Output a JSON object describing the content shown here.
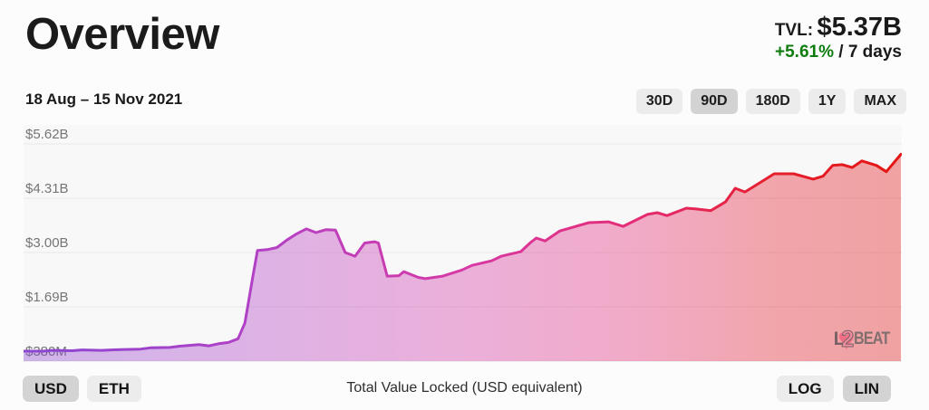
{
  "header": {
    "title": "Overview",
    "tvl_label": "TVL:",
    "tvl_value": "$5.37B",
    "change": "+5.61%",
    "change_suffix": " / 7 days",
    "date_range": "18 Aug – 15 Nov 2021"
  },
  "range_selector": {
    "buttons": [
      {
        "label": "30D",
        "selected": false
      },
      {
        "label": "90D",
        "selected": true
      },
      {
        "label": "180D",
        "selected": false
      },
      {
        "label": "1Y",
        "selected": false
      },
      {
        "label": "MAX",
        "selected": false
      }
    ]
  },
  "chart_data": {
    "type": "area",
    "title": "Total Value Locked (USD equivalent)",
    "x_range": [
      "18 Aug 2021",
      "15 Nov 2021"
    ],
    "x_unit": "days_from_start",
    "x_max_days": 90,
    "y_unit": "USD billions",
    "ylim": [
      0.38,
      5.62
    ],
    "grid": "horizontal",
    "legend": "none",
    "y_ticks": [
      {
        "label": "$5.62B",
        "value": 5.62
      },
      {
        "label": "$4.31B",
        "value": 4.31
      },
      {
        "label": "$3.00B",
        "value": 3.0
      },
      {
        "label": "$1.69B",
        "value": 1.69
      },
      {
        "label": "$380M",
        "value": 0.38
      }
    ],
    "points": [
      [
        0,
        0.62
      ],
      [
        2,
        0.62
      ],
      [
        3,
        0.64
      ],
      [
        5,
        0.63
      ],
      [
        6,
        0.65
      ],
      [
        8,
        0.64
      ],
      [
        10,
        0.66
      ],
      [
        12,
        0.67
      ],
      [
        13,
        0.7
      ],
      [
        15,
        0.71
      ],
      [
        16,
        0.74
      ],
      [
        17,
        0.76
      ],
      [
        18,
        0.78
      ],
      [
        19,
        0.75
      ],
      [
        20,
        0.8
      ],
      [
        21,
        0.83
      ],
      [
        22,
        0.92
      ],
      [
        22.7,
        1.3
      ],
      [
        23.5,
        2.4
      ],
      [
        24,
        3.05
      ],
      [
        25,
        3.07
      ],
      [
        26,
        3.12
      ],
      [
        27,
        3.3
      ],
      [
        28,
        3.45
      ],
      [
        29,
        3.57
      ],
      [
        30,
        3.48
      ],
      [
        31,
        3.55
      ],
      [
        32,
        3.54
      ],
      [
        33,
        3.0
      ],
      [
        34,
        2.91
      ],
      [
        35,
        3.23
      ],
      [
        36,
        3.26
      ],
      [
        36.4,
        3.23
      ],
      [
        37.3,
        2.43
      ],
      [
        38.5,
        2.44
      ],
      [
        39,
        2.54
      ],
      [
        40.5,
        2.4
      ],
      [
        41.2,
        2.37
      ],
      [
        43,
        2.43
      ],
      [
        45,
        2.58
      ],
      [
        46,
        2.69
      ],
      [
        48,
        2.8
      ],
      [
        49,
        2.91
      ],
      [
        51,
        3.02
      ],
      [
        52,
        3.24
      ],
      [
        52.6,
        3.35
      ],
      [
        53.5,
        3.28
      ],
      [
        55,
        3.52
      ],
      [
        58,
        3.72
      ],
      [
        60,
        3.74
      ],
      [
        61.5,
        3.63
      ],
      [
        64,
        3.92
      ],
      [
        65,
        3.96
      ],
      [
        66,
        3.89
      ],
      [
        68,
        4.07
      ],
      [
        69,
        4.05
      ],
      [
        70.5,
        4.01
      ],
      [
        72,
        4.22
      ],
      [
        73,
        4.55
      ],
      [
        74,
        4.46
      ],
      [
        75.5,
        4.68
      ],
      [
        77,
        4.9
      ],
      [
        79,
        4.9
      ],
      [
        81,
        4.77
      ],
      [
        82,
        4.84
      ],
      [
        83,
        5.1
      ],
      [
        84,
        5.12
      ],
      [
        85,
        5.05
      ],
      [
        86,
        5.21
      ],
      [
        87.5,
        5.1
      ],
      [
        88.5,
        4.95
      ],
      [
        90,
        5.37
      ]
    ],
    "line_gradient_stops": [
      {
        "offset": 0.0,
        "color": "#8a46d2"
      },
      {
        "offset": 0.28,
        "color": "#b440c4"
      },
      {
        "offset": 0.5,
        "color": "#d639a6"
      },
      {
        "offset": 0.7,
        "color": "#e52c74"
      },
      {
        "offset": 0.85,
        "color": "#e51f2e"
      },
      {
        "offset": 1.0,
        "color": "#e41513"
      }
    ],
    "fill_opacity": 0.38,
    "line_width": 3
  },
  "watermark": {
    "heart": "♥",
    "l": "L",
    "two": "2",
    "beat": "BEAT"
  },
  "footer": {
    "currency_buttons": [
      {
        "label": "USD",
        "selected": true
      },
      {
        "label": "ETH",
        "selected": false
      }
    ],
    "caption": "Total Value Locked (USD equivalent)",
    "scale_buttons": [
      {
        "label": "LOG",
        "selected": false
      },
      {
        "label": "LIN",
        "selected": true
      }
    ]
  },
  "colors": {
    "change_green": "#0e7d0e",
    "button_bg": "#ececec",
    "button_selected_bg": "#d3d3d3",
    "grid_line": "#e7e7e7",
    "tick_text": "#757575",
    "plot_bg": "#f8f8f9"
  }
}
